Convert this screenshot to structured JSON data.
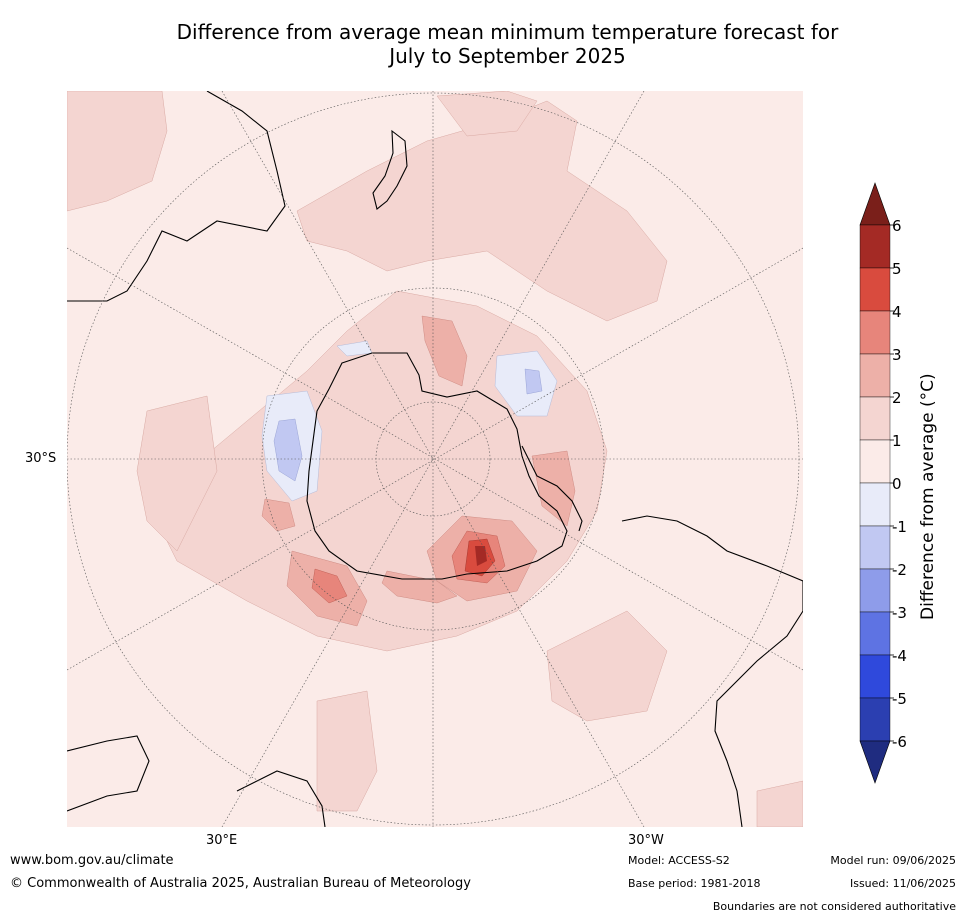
{
  "title_line1": "Difference from average mean minimum temperature forecast for",
  "title_line2": "July to September 2025",
  "map": {
    "projection": "south polar stereographic",
    "lat_label": "30°S",
    "lon_labels": [
      "30°E",
      "30°W"
    ],
    "background_color": "#fbebe8",
    "coast_color": "#000000",
    "boundary_color": "#888888"
  },
  "colorbar": {
    "label": "Difference from average ($^\\circ$C)",
    "label_text": "Difference from average (°C)",
    "ticks": [
      "6",
      "5",
      "4",
      "3",
      "2",
      "1",
      "0",
      "-1",
      "-2",
      "-3",
      "-4",
      "-5",
      "-6"
    ],
    "colors": [
      "#a42a25",
      "#d94b3e",
      "#e7857b",
      "#edb0a8",
      "#f4d5d1",
      "#fbebe8",
      "#e8ebf9",
      "#c1c8f2",
      "#8e9cea",
      "#5e73e3",
      "#2f49dc",
      "#2b3fb1"
    ],
    "over_color": "#7a1f1a",
    "under_color": "#1f2c80"
  },
  "footer": {
    "url": "www.bom.gov.au/climate",
    "copyright": "© Commonwealth of Australia 2025, Australian Bureau of Meteorology",
    "model": "Model: ACCESS-S2",
    "base_period": "Base period: 1981-2018",
    "model_run": "Model run: 09/06/2025",
    "issued": "Issued: 11/06/2025",
    "boundaries": "Boundaries are not considered authoritative"
  }
}
